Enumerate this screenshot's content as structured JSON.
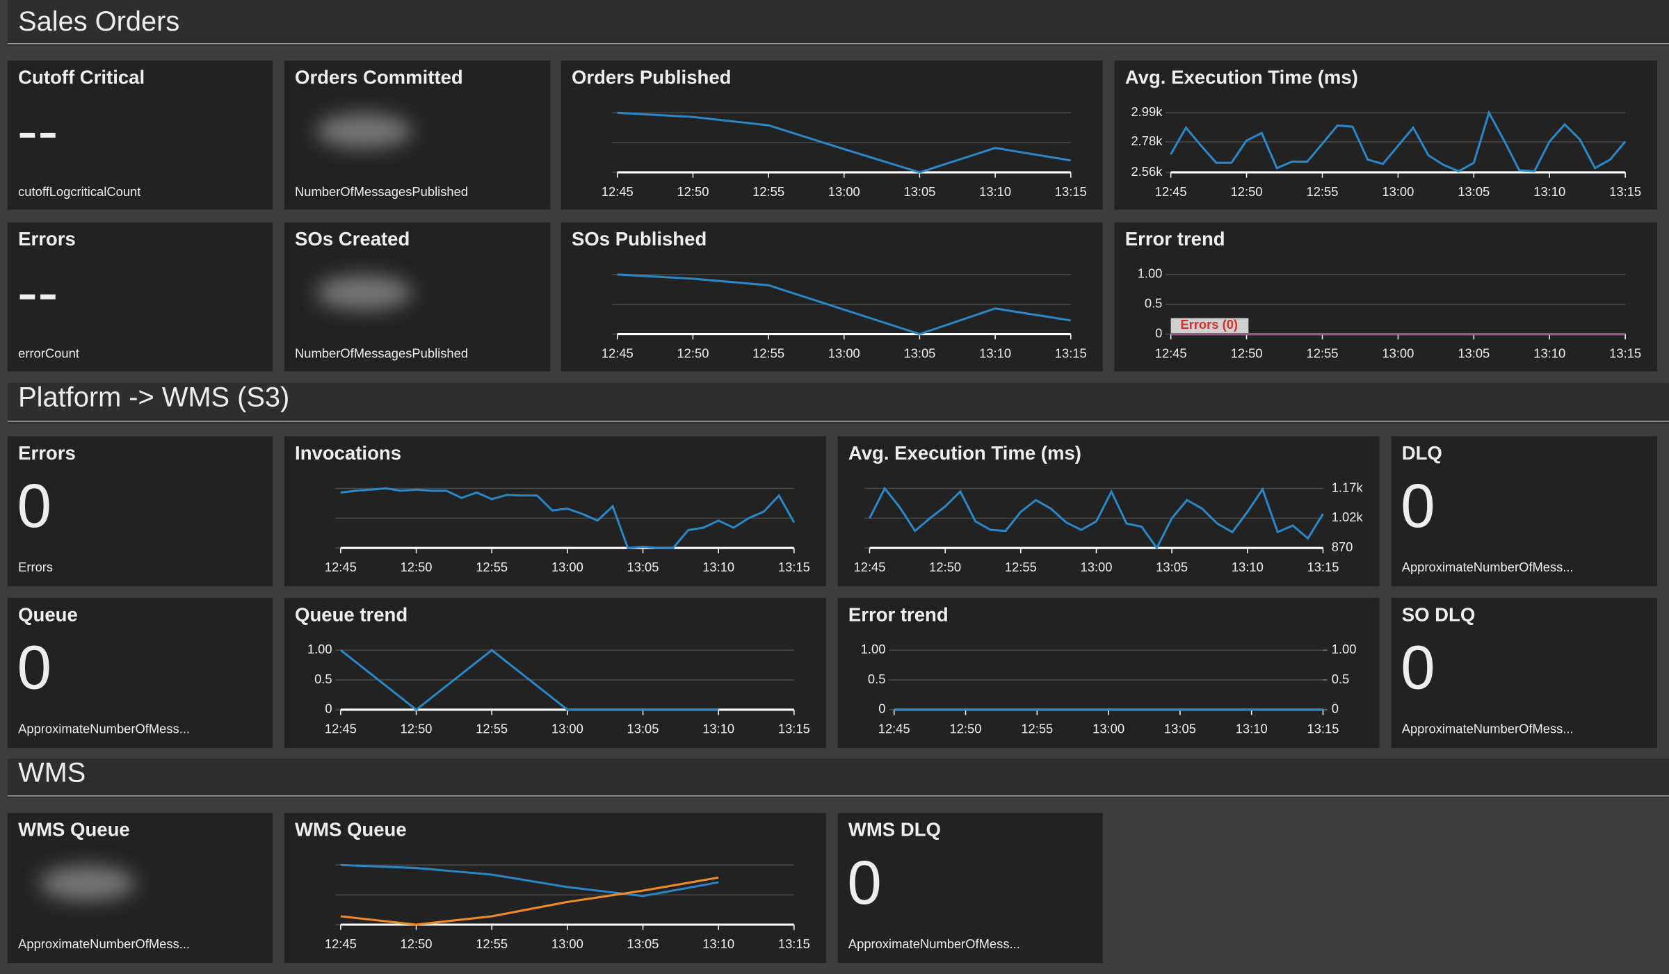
{
  "sections": [
    {
      "title": "Sales Orders",
      "widgets": [
        {
          "kind": "number",
          "title": "Cutoff Critical",
          "value": "--",
          "label": "cutoffLogcriticalCount"
        },
        {
          "kind": "hidden",
          "title": "Orders Committed",
          "label": "NumberOfMessagesPublished"
        },
        {
          "kind": "chart",
          "title": "Orders Published",
          "chart": {
            "type": "line",
            "x": [
              "12:45",
              "12:50",
              "12:55",
              "13:00",
              "13:05",
              "13:10",
              "13:15"
            ],
            "series": [
              {
                "color": "#2b86c6",
                "values": [
                  1,
                  0.93,
                  0.79,
                  0.39,
                  0,
                  0.41,
                  0.2
                ]
              }
            ],
            "ylim": [
              0,
              1
            ],
            "yticks": [
              0,
              0.5,
              1
            ],
            "ytick_labels": false,
            "xticks": [
              "12:45",
              "12:50",
              "12:55",
              "13:00",
              "13:05",
              "13:10",
              "13:15"
            ]
          }
        },
        {
          "kind": "chart",
          "title": "Avg. Execution Time (ms)",
          "chart": {
            "type": "line",
            "x": [
              "12:45",
              "12:46",
              "12:47",
              "12:48",
              "12:49",
              "12:50",
              "12:51",
              "12:52",
              "12:53",
              "12:54",
              "12:55",
              "12:56",
              "12:57",
              "12:58",
              "12:59",
              "13:00",
              "13:01",
              "13:02",
              "13:03",
              "13:04",
              "13:05",
              "13:06",
              "13:07",
              "13:08",
              "13:09",
              "13:10",
              "13:11",
              "13:12",
              "13:13",
              "13:14",
              "13:15"
            ],
            "series": [
              {
                "color": "#2b86c6",
                "values": [
                  2691,
                  2883,
                  2752,
                  2629,
                  2629,
                  2790,
                  2844,
                  2591,
                  2637,
                  2637,
                  2767,
                  2898,
                  2890,
                  2652,
                  2621,
                  2752,
                  2883,
                  2683,
                  2614,
                  2568,
                  2629,
                  2990,
                  2790,
                  2575,
                  2568,
                  2783,
                  2906,
                  2798,
                  2591,
                  2652,
                  2783
                ]
              }
            ],
            "ylim": [
              2560,
              2990
            ],
            "yticks": [
              {
                "value": 2560,
                "label": "2.56k"
              },
              {
                "value": 2780,
                "label": "2.78k"
              },
              {
                "value": 2990,
                "label": "2.99k"
              }
            ],
            "xticks": [
              "12:45",
              "12:50",
              "12:55",
              "13:00",
              "13:05",
              "13:10",
              "13:15"
            ]
          }
        },
        {
          "kind": "number",
          "title": "Errors",
          "value": "--",
          "label": "errorCount"
        },
        {
          "kind": "hidden",
          "title": "SOs Created",
          "label": "NumberOfMessagesPublished"
        },
        {
          "kind": "chart",
          "title": "SOs Published",
          "chart": {
            "type": "line",
            "x": [
              "12:45",
              "12:50",
              "12:55",
              "13:00",
              "13:05",
              "13:10",
              "13:15"
            ],
            "series": [
              {
                "color": "#2b86c6",
                "values": [
                  1,
                  0.93,
                  0.82,
                  0.41,
                  0,
                  0.43,
                  0.23
                ]
              }
            ],
            "ylim": [
              0,
              1
            ],
            "yticks": [
              0,
              0.5,
              1
            ],
            "ytick_labels": false,
            "xticks": [
              "12:45",
              "12:50",
              "12:55",
              "13:00",
              "13:05",
              "13:10",
              "13:15"
            ]
          }
        },
        {
          "kind": "chart",
          "title": "Error trend",
          "chart": {
            "type": "line",
            "x": [
              "12:45",
              "12:50",
              "12:55",
              "13:00",
              "13:05",
              "13:10",
              "13:15"
            ],
            "series": [
              {
                "label": "Errors (0)",
                "color": "#a0508a",
                "values": [
                  0,
                  0,
                  0,
                  0,
                  0,
                  0,
                  0
                ]
              }
            ],
            "ylim": [
              0,
              1
            ],
            "yticks": [
              0,
              0.5,
              {
                "value": 1,
                "label": "1.00"
              }
            ],
            "xticks": [
              "12:45",
              "12:50",
              "12:55",
              "13:00",
              "13:05",
              "13:10",
              "13:15"
            ]
          }
        }
      ]
    },
    {
      "title": "Platform -> WMS (S3)",
      "widgets": [
        {
          "kind": "number",
          "title": "Errors",
          "value": 0,
          "label": "Errors"
        },
        {
          "kind": "chart",
          "title": "Invocations",
          "chart": {
            "type": "line",
            "x": [
              "12:45",
              "12:46",
              "12:47",
              "12:48",
              "12:49",
              "12:50",
              "12:51",
              "12:52",
              "12:53",
              "12:54",
              "12:55",
              "12:56",
              "12:57",
              "12:58",
              "12:59",
              "13:00",
              "13:01",
              "13:02",
              "13:03",
              "13:04",
              "13:05",
              "13:06",
              "13:07",
              "13:08",
              "13:09",
              "13:10",
              "13:11",
              "13:12",
              "13:13",
              "13:14",
              "13:15"
            ],
            "series": [
              {
                "color": "#2b86c6",
                "values": [
                  0.93,
                  0.96,
                  0.98,
                  1,
                  0.96,
                  0.98,
                  0.96,
                  0.96,
                  0.84,
                  0.93,
                  0.82,
                  0.89,
                  0.88,
                  0.88,
                  0.63,
                  0.66,
                  0.57,
                  0.46,
                  0.7,
                  0,
                  0.02,
                  0,
                  0,
                  0.3,
                  0.34,
                  0.46,
                  0.34,
                  0.5,
                  0.61,
                  0.88,
                  0.43
                ]
              }
            ],
            "ylim": [
              0,
              1
            ],
            "yticks": [
              0,
              0.5,
              1
            ],
            "ytick_labels": false,
            "xticks": [
              "12:45",
              "12:50",
              "12:55",
              "13:00",
              "13:05",
              "13:10",
              "13:15"
            ]
          }
        },
        {
          "kind": "chart",
          "title": "Avg. Execution Time (ms)",
          "chart": {
            "type": "line",
            "y_axis_side": "right",
            "x": [
              "12:45",
              "12:46",
              "12:47",
              "12:48",
              "12:49",
              "12:50",
              "12:51",
              "12:52",
              "12:53",
              "12:54",
              "12:55",
              "12:56",
              "12:57",
              "12:58",
              "12:59",
              "13:00",
              "13:01",
              "13:02",
              "13:03",
              "13:04",
              "13:05",
              "13:06",
              "13:07",
              "13:08",
              "13:09",
              "13:10",
              "13:11",
              "13:12",
              "13:13",
              "13:14",
              "13:15"
            ],
            "series": [
              {
                "color": "#2b86c6",
                "values": [
                  1020,
                  1170,
                  1074,
                  956,
                  1020,
                  1079,
                  1154,
                  1004,
                  961,
                  956,
                  1052,
                  1111,
                  1068,
                  999,
                  961,
                  1004,
                  1154,
                  993,
                  977,
                  870,
                  1020,
                  1111,
                  1068,
                  993,
                  950,
                  1052,
                  1165,
                  950,
                  983,
                  918,
                  1042
                ]
              }
            ],
            "ylim": [
              870,
              1170
            ],
            "yticks": [
              870,
              {
                "value": 1020,
                "label": "1.02k"
              },
              {
                "value": 1170,
                "label": "1.17k"
              }
            ],
            "xticks": [
              "12:45",
              "12:50",
              "12:55",
              "13:00",
              "13:05",
              "13:10",
              "13:15"
            ]
          }
        },
        {
          "kind": "number",
          "title": "DLQ",
          "value": 0,
          "label": "ApproximateNumberOfMess..."
        },
        {
          "kind": "number",
          "title": "Queue",
          "value": 0,
          "label": "ApproximateNumberOfMess..."
        },
        {
          "kind": "chart",
          "title": "Queue trend",
          "chart": {
            "type": "line",
            "x": [
              "12:45",
              "12:50",
              "12:55",
              "13:00",
              "13:05",
              "13:10"
            ],
            "series": [
              {
                "color": "#2b86c6",
                "values": [
                  1,
                  0,
                  1,
                  0,
                  0,
                  0
                ]
              }
            ],
            "ylim": [
              0,
              1
            ],
            "yticks": [
              0,
              0.5,
              {
                "value": 1,
                "label": "1.00"
              }
            ],
            "xticks": [
              "12:45",
              "12:50",
              "12:55",
              "13:00",
              "13:05",
              "13:10",
              "13:15"
            ]
          }
        },
        {
          "kind": "chart",
          "title": "Error trend",
          "chart": {
            "type": "line",
            "x": [
              "12:45",
              "12:50",
              "12:55",
              "13:00",
              "13:05",
              "13:10",
              "13:15"
            ],
            "series": [
              {
                "color": "#2b86c6",
                "values": [
                  0,
                  0,
                  0,
                  0,
                  0,
                  0,
                  0
                ]
              }
            ],
            "ylim": [
              0,
              1
            ],
            "yticks": [
              0,
              0.5,
              {
                "value": 1,
                "label": "1.00"
              }
            ],
            "y2lim": [
              0,
              1
            ],
            "y2ticks": [
              0,
              0.5,
              {
                "value": 1,
                "label": "1.00"
              }
            ],
            "xticks": [
              "12:45",
              "12:50",
              "12:55",
              "13:00",
              "13:05",
              "13:10",
              "13:15"
            ]
          }
        },
        {
          "kind": "number",
          "title": "SO DLQ",
          "value": 0,
          "label": "ApproximateNumberOfMess..."
        }
      ]
    },
    {
      "title": "WMS",
      "widgets": [
        {
          "kind": "hidden",
          "title": "WMS Queue",
          "label": "ApproximateNumberOfMess..."
        },
        {
          "kind": "chart",
          "title": "WMS Queue",
          "chart": {
            "type": "line",
            "x": [
              "12:45",
              "12:50",
              "12:55",
              "13:00",
              "13:05",
              "13:10"
            ],
            "series": [
              {
                "color": "#2b86c6",
                "values": [
                  1,
                  0.95,
                  0.84,
                  0.63,
                  0.48,
                  0.71
                ]
              },
              {
                "color": "#f08a24",
                "values": [
                  0.14,
                  0,
                  0.14,
                  0.38,
                  0.57,
                  0.79
                ]
              }
            ],
            "ylim": [
              0,
              1
            ],
            "yticks": [
              0,
              0.5,
              1
            ],
            "ytick_labels": false,
            "xticks": [
              "12:45",
              "12:50",
              "12:55",
              "13:00",
              "13:05",
              "13:10",
              "13:15"
            ]
          }
        },
        {
          "kind": "number",
          "title": "WMS DLQ",
          "value": 0,
          "label": "ApproximateNumberOfMess..."
        }
      ]
    }
  ]
}
